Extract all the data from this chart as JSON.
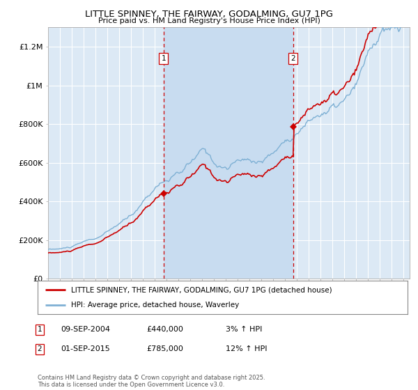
{
  "title": "LITTLE SPINNEY, THE FAIRWAY, GODALMING, GU7 1PG",
  "subtitle": "Price paid vs. HM Land Registry's House Price Index (HPI)",
  "ylabel_ticks": [
    "£0",
    "£200K",
    "£400K",
    "£600K",
    "£800K",
    "£1M",
    "£1.2M"
  ],
  "ytick_values": [
    0,
    200000,
    400000,
    600000,
    800000,
    1000000,
    1200000
  ],
  "ylim": [
    0,
    1300000
  ],
  "xlim_start": 1995.0,
  "xlim_end": 2025.5,
  "background_color": "#ffffff",
  "plot_bg_color": "#dce9f5",
  "shaded_bg_color": "#c8dcf0",
  "grid_color": "#ffffff",
  "red_line_color": "#cc0000",
  "blue_line_color": "#7eb0d4",
  "marker1_date": 2004.75,
  "marker2_date": 2015.67,
  "marker1_price": 440000,
  "marker2_price": 785000,
  "legend_label_red": "LITTLE SPINNEY, THE FAIRWAY, GODALMING, GU7 1PG (detached house)",
  "legend_label_blue": "HPI: Average price, detached house, Waverley",
  "annotation1_label": "1",
  "annotation2_label": "2",
  "table_rows": [
    [
      "1",
      "09-SEP-2004",
      "£440,000",
      "3% ↑ HPI"
    ],
    [
      "2",
      "01-SEP-2015",
      "£785,000",
      "12% ↑ HPI"
    ]
  ],
  "footnote": "Contains HM Land Registry data © Crown copyright and database right 2025.\nThis data is licensed under the Open Government Licence v3.0."
}
